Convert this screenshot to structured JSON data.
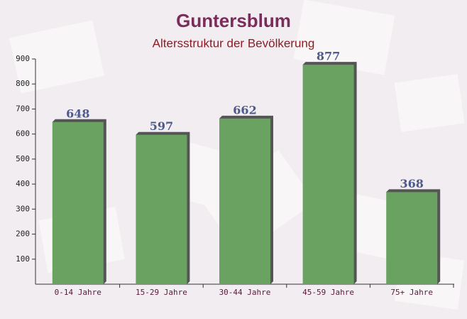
{
  "chart_data": {
    "type": "bar",
    "title": "Guntersblum",
    "subtitle": "Altersstruktur der Bevölkerung",
    "categories": [
      "0-14 Jahre",
      "15-29 Jahre",
      "30-44 Jahre",
      "45-59 Jahre",
      "75+ Jahre"
    ],
    "values": [
      648,
      597,
      662,
      877,
      368
    ],
    "color": "#6aa262",
    "ylim": [
      0,
      900
    ],
    "yticks": [
      100,
      200,
      300,
      400,
      500,
      600,
      700,
      800,
      900
    ],
    "grid": false
  }
}
